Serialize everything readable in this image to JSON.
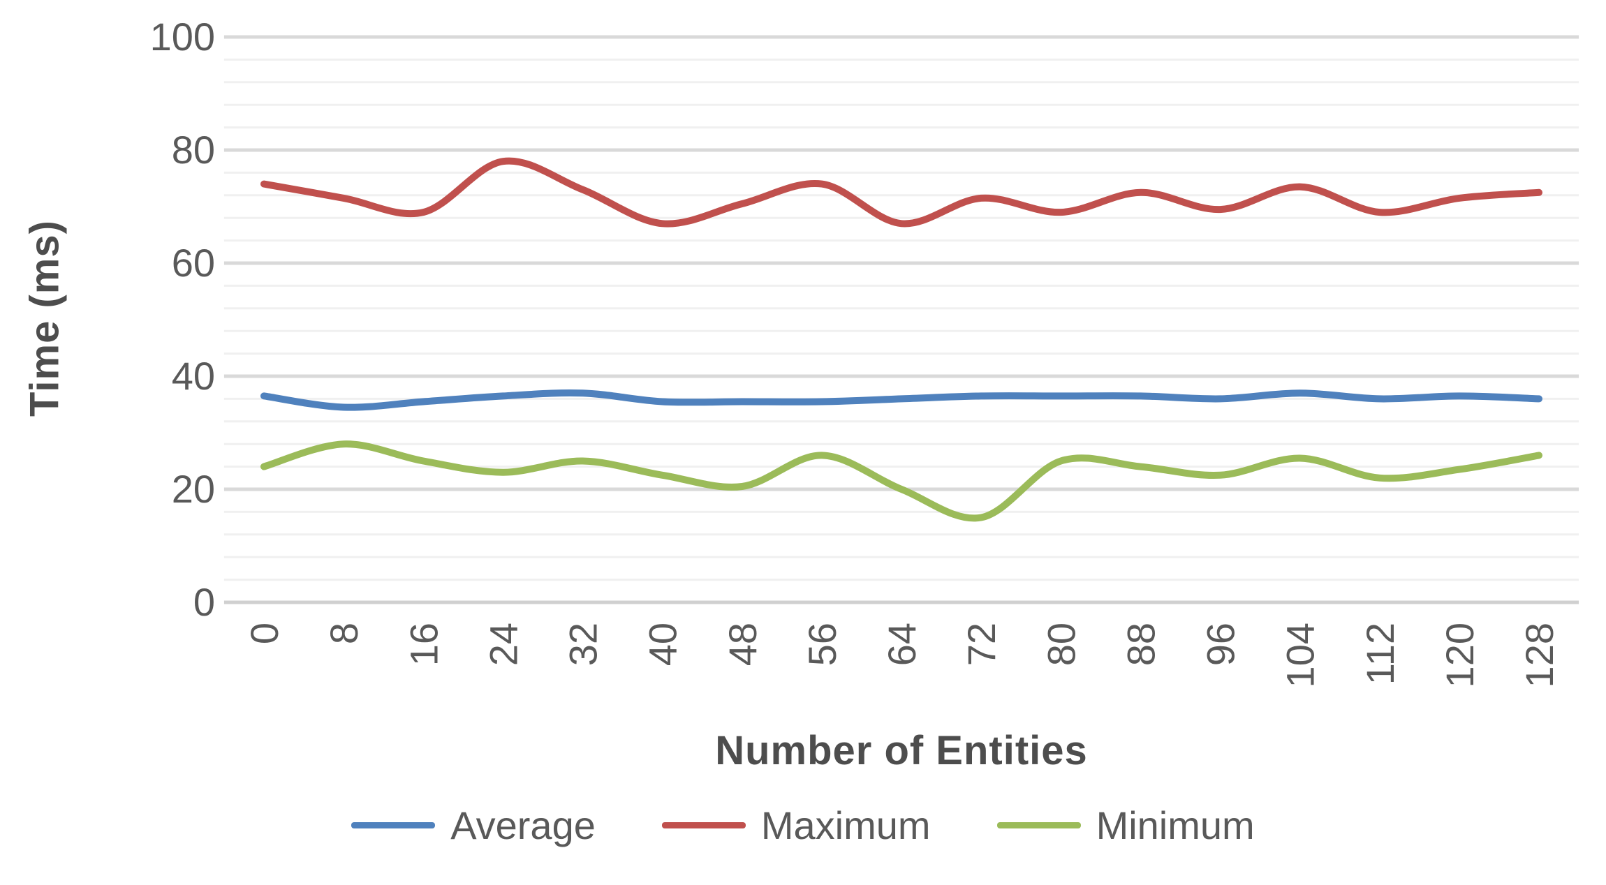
{
  "chart_data": {
    "type": "line",
    "title": "",
    "xlabel": "Number of Entities",
    "ylabel": "Time (ms)",
    "x": [
      0,
      8,
      16,
      24,
      32,
      40,
      48,
      56,
      64,
      72,
      80,
      88,
      96,
      104,
      112,
      120,
      128
    ],
    "ylim": [
      0,
      100
    ],
    "y_major_ticks": [
      0,
      20,
      40,
      60,
      80,
      100
    ],
    "y_minor_step": 4,
    "grid": true,
    "smooth": true,
    "legend_position": "bottom",
    "series": [
      {
        "name": "Average",
        "color": "#4F81BD",
        "values": [
          36.5,
          34.5,
          35.5,
          36.5,
          37,
          35.5,
          35.5,
          35.5,
          36,
          36.5,
          36.5,
          36.5,
          36,
          37,
          36,
          36.5,
          36
        ]
      },
      {
        "name": "Maximum",
        "color": "#C0504D",
        "values": [
          74,
          71.5,
          69,
          78,
          73,
          67,
          70.5,
          74,
          67,
          71.5,
          69,
          72.5,
          69.5,
          73.5,
          69,
          71.5,
          72.5
        ]
      },
      {
        "name": "Minimum",
        "color": "#9BBB59",
        "values": [
          24,
          28,
          25,
          23,
          25,
          22.5,
          20.5,
          26,
          20,
          15,
          25,
          24,
          22.5,
          25.5,
          22,
          23.5,
          26
        ]
      }
    ]
  },
  "colors": {
    "major_grid": "#D9D9D9",
    "minor_grid": "#F0F0F0",
    "axis_line": "#D0D0D0",
    "tick_text": "#595959",
    "title_text": "#4d4d4d"
  },
  "geometry_note": "y axis 0-100 ms, minor gridlines every 4 ms, x categories every 8 entities"
}
